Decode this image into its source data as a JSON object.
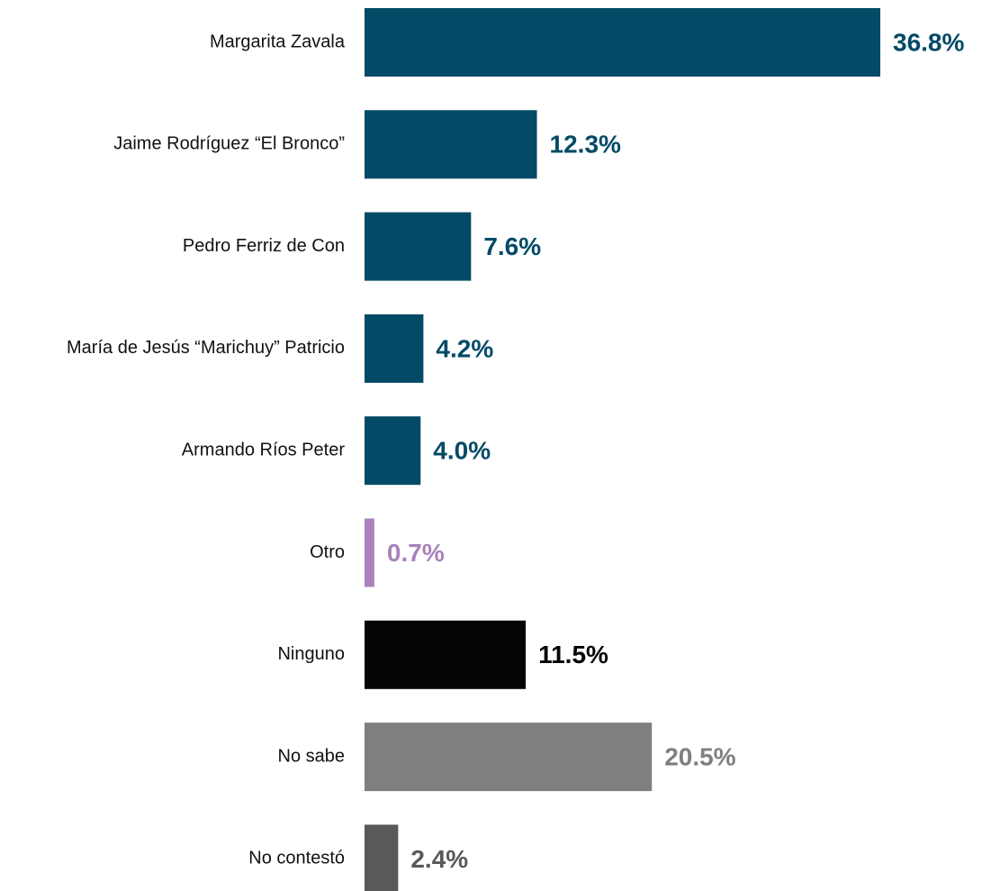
{
  "chart_data": {
    "type": "hbar",
    "categories": [
      "Margarita Zavala",
      "Jaime Rodríguez “El Bronco”",
      "Pedro Ferriz de Con",
      "María de Jesús “Marichuy” Patricio",
      "Armando Ríos Peter",
      "Otro",
      "Ninguno",
      "No sabe",
      "No contestó"
    ],
    "values": [
      36.8,
      12.3,
      7.6,
      4.2,
      4.0,
      0.7,
      11.5,
      20.5,
      2.4
    ],
    "value_labels": [
      "36.8%",
      "12.3%",
      "7.6%",
      "4.2%",
      "4.0%",
      "0.7%",
      "11.5%",
      "20.5%",
      "2.4%"
    ],
    "colors": [
      "#034a66",
      "#034a66",
      "#034a66",
      "#034a66",
      "#034a66",
      "#a883bb",
      "#050507",
      "#7f7f7f",
      "#595959"
    ]
  }
}
